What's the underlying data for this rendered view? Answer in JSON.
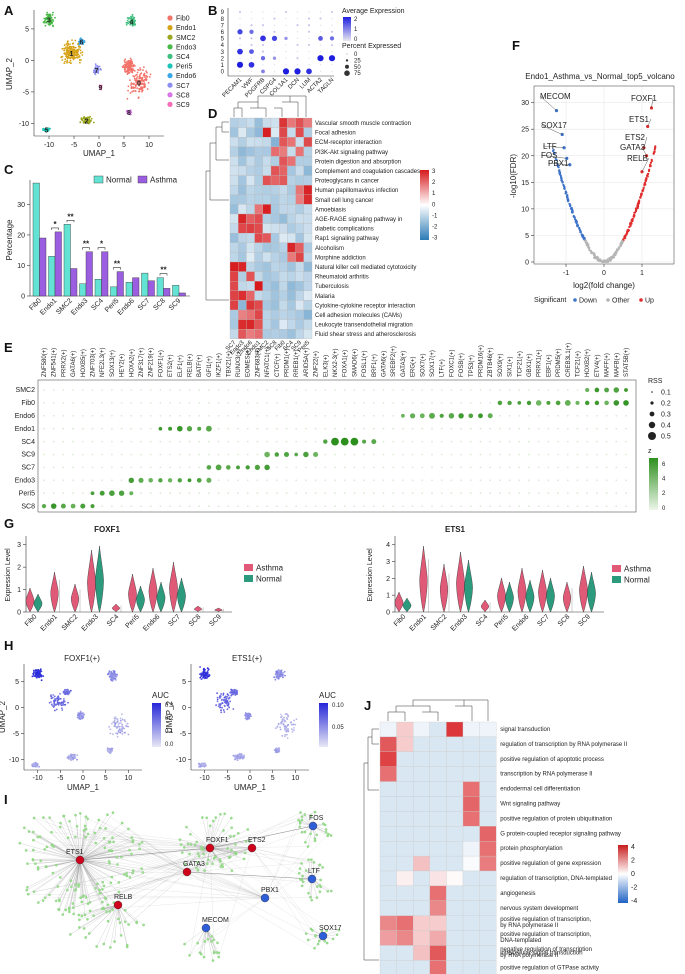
{
  "panels": {
    "A": {
      "label": "A",
      "xlabel": "UMAP_1",
      "ylabel": "UMAP_2",
      "xticks": [
        "-10",
        "-5",
        "0",
        "5",
        "10"
      ],
      "yticks": [
        "5",
        "0",
        "-5",
        "-10"
      ],
      "clusters": [
        {
          "id": "0",
          "name": "Fib0",
          "color": "#f2736a"
        },
        {
          "id": "1",
          "name": "Endo1",
          "color": "#d6a317"
        },
        {
          "id": "2",
          "name": "SMC2",
          "color": "#9aa61c"
        },
        {
          "id": "3",
          "name": "Endo3",
          "color": "#48b946"
        },
        {
          "id": "4",
          "name": "SC4",
          "color": "#3fbf7f"
        },
        {
          "id": "5",
          "name": "Peri5",
          "color": "#1ec4b6"
        },
        {
          "id": "6",
          "name": "Endo6",
          "color": "#3aa8e8"
        },
        {
          "id": "7",
          "name": "SC7",
          "color": "#8d8ff0"
        },
        {
          "id": "8",
          "name": "SC8",
          "color": "#d975e8"
        },
        {
          "id": "9",
          "name": "SC9",
          "color": "#f56cb8"
        }
      ]
    },
    "B": {
      "label": "B",
      "genes": [
        "PECAM1",
        "VWF",
        "PDGFRB",
        "CSPG4",
        "COL1A1",
        "DCN",
        "LUM",
        "ACTA2",
        "TAGLN"
      ],
      "rows": [
        "9",
        "8",
        "7",
        "6",
        "5",
        "4",
        "3",
        "2",
        "1",
        "0"
      ],
      "legend_expr_title": "Average Expression",
      "legend_expr_ticks": [
        "2",
        "1",
        "0"
      ],
      "legend_pct_title": "Percent Expressed",
      "legend_pct_ticks": [
        "0",
        "25",
        "50",
        "75"
      ]
    },
    "C": {
      "label": "C",
      "ylabel": "Percentage",
      "yticks": [
        "0",
        "10",
        "20",
        "30"
      ],
      "legend": [
        "Normal",
        "Asthma"
      ],
      "series_colors": [
        "#63e3d3",
        "#9b5ee0"
      ],
      "categories": [
        "Fib0",
        "Endo1",
        "SMC2",
        "Endo3",
        "SC4",
        "Peri5",
        "Endo6",
        "SC7",
        "SC8",
        "SC9"
      ],
      "normal": [
        37,
        13,
        23.5,
        4,
        5.5,
        3,
        4.5,
        7.5,
        6,
        3.5
      ],
      "asthma": [
        19,
        21,
        9,
        14.5,
        14.5,
        8,
        6,
        5,
        2.5,
        1
      ],
      "signif": [
        {
          "i": 1,
          "label": "*"
        },
        {
          "i": 2,
          "label": "**"
        },
        {
          "i": 3,
          "label": "**"
        },
        {
          "i": 4,
          "label": "*"
        },
        {
          "i": 5,
          "label": "**"
        },
        {
          "i": 8,
          "label": "**"
        }
      ]
    },
    "D": {
      "label": "D",
      "pathways": [
        "Vascular smooth muscle contraction",
        "Focal adhesion",
        "ECM-receptor interaction",
        "PI3K-Akt signaling pathway",
        "Protein digestion and absorption",
        "Complement and coagulation cascades",
        "Proteoglycans in cancer",
        "Human papillomavirus infection",
        "Small cell lung cancer",
        "Amoebiasis",
        "AGE-RAGE signaling pathway in",
        "diabetic complications",
        "Rap1 signaling pathway",
        "Alcoholism",
        "Morphine addiction",
        "Natural killer cell mediated cytotoxicity",
        "Rheumatoid arthritis",
        "Tuberculosis",
        "Malaria",
        "Cytokine-cytokine receptor interaction",
        "Cell adhesion molecules (CAMs)",
        "Leukocyte transendothelial migration",
        "Fluid shear stress and atherosclerosis"
      ],
      "cols": [
        "SC7",
        "Endo3",
        "Endo6",
        "Endo1",
        "SMC2",
        "SC8",
        "Fib0",
        "SC4",
        "SC9",
        "Peri5"
      ],
      "legend_ticks": [
        "3",
        "2",
        "1",
        "0",
        "-1",
        "-2",
        "-3"
      ]
    },
    "E": {
      "label": "E",
      "tfs": [
        "ZNF580(+)",
        "ZNF541(+)",
        "PRRX2(+)",
        "GATA6(+)",
        "HOXB5(+)",
        "ZNF703(+)",
        "NFE2L3(+)",
        "SOX13(+)",
        "HEY2(+)",
        "HOXA2(+)",
        "ZNF317(+)",
        "ZNF219(+)",
        "FOXF1(+)",
        "ETS2(+)",
        "ELF1(+)",
        "RELB(+)",
        "BATF(+)",
        "GFI1(+)",
        "IKZF1(+)",
        "TBX21(+)",
        "RUNX3(+)",
        "EOMES(+)",
        "ZNF683(+)",
        "NFATC1(+)",
        "CTCF(+)",
        "PRDM1(+)",
        "RREB1(+)",
        "ARID5A(+)",
        "ZNF22(+)",
        "ELK3(+)",
        "NKX2-3(+)",
        "FOXA1(+)",
        "SMAD6(+)",
        "FOSL1(+)",
        "BRF1(+)",
        "GATA6(+)",
        "SREBF2(+)",
        "GATA3(+)",
        "ERG(+)",
        "SOX7(+)",
        "SOX17(+)",
        "LTF(+)",
        "FOXC1(+)",
        "FOSB(+)",
        "TP53(+)",
        "PRDM16(+)",
        "ZBTB46(+)",
        "SOX9(+)",
        "SIX1(+)",
        "TCF21(+)",
        "GBX1(+)",
        "PRRX1(+)",
        "EBF1(+)",
        "PRDM5(+)",
        "CREB3L1(+)",
        "TCF21(+)",
        "HOXB2(+)",
        "ETV4(+)",
        "MAFF(+)",
        "MAFB(+)",
        "STAT5B(+)"
      ],
      "rows": [
        "SMC2",
        "Fib0",
        "Endo6",
        "Endo1",
        "SC4",
        "SC9",
        "SC7",
        "Endo3",
        "Peri5",
        "SC8"
      ],
      "legend_rss_title": "RSS",
      "legend_rss_ticks": [
        "0.1",
        "0.2",
        "0.3",
        "0.4",
        "0.5"
      ],
      "legend_z_title": "z",
      "legend_z_ticks": [
        "6",
        "4",
        "2",
        "0"
      ]
    },
    "G": {
      "label": "G",
      "gene1": "FOXF1",
      "gene2": "ETS1",
      "ylabel": "Expression Level",
      "yticks1": [
        "0",
        "1",
        "2",
        "3"
      ],
      "yticks2": [
        "0",
        "1",
        "2",
        "3",
        "4"
      ],
      "categories": [
        "Fib0",
        "Endo1",
        "SMC2",
        "Endo3",
        "SC4",
        "Peri5",
        "Endo6",
        "SC7",
        "SC8",
        "SC9"
      ],
      "legend": [
        "Asthma",
        "Normal"
      ],
      "colors": [
        "#e05a78",
        "#2c9a7c"
      ]
    },
    "H": {
      "label": "H",
      "title1": "FOXF1(+)",
      "title2": "ETS1(+)",
      "xlabel": "UMAP_1",
      "ylabel": "UMAP_2",
      "xticks": [
        "-10",
        "-5",
        "0",
        "5",
        "10"
      ],
      "yticks": [
        "5",
        "0",
        "-5",
        "-10"
      ],
      "auc_title": "AUC",
      "auc_ticks1": [
        "0.3",
        "0.2",
        "0.1",
        "0.0"
      ],
      "auc_ticks2": [
        "0.10",
        "0.05"
      ]
    },
    "I": {
      "label": "I",
      "hubs": [
        {
          "name": "ETS1",
          "color": "#d0021b"
        },
        {
          "name": "FOXF1",
          "color": "#d0021b"
        },
        {
          "name": "ETS2",
          "color": "#d0021b"
        },
        {
          "name": "GATA3",
          "color": "#d0021b"
        },
        {
          "name": "RELB",
          "color": "#d0021b"
        },
        {
          "name": "FOS",
          "color": "#2f5fd8"
        },
        {
          "name": "PBX1",
          "color": "#2f5fd8"
        },
        {
          "name": "LTF",
          "color": "#2f5fd8"
        },
        {
          "name": "MECOM",
          "color": "#2f5fd8"
        },
        {
          "name": "SOX17",
          "color": "#2f5fd8"
        }
      ]
    },
    "F": {
      "label": "F",
      "title": "Endo1_Asthma_vs_Normal_top5_volcano",
      "xlabel": "log2(fold change)",
      "ylabel": "-log10(FDR)",
      "xticks": [
        "-1",
        "0",
        "1"
      ],
      "yticks": [
        "0",
        "5",
        "10",
        "15",
        "20",
        "25",
        "30"
      ],
      "labels": [
        "MECOM",
        "SOX17",
        "LTF",
        "FOS",
        "PBX1",
        "FOXF1",
        "ETS1",
        "ETS2",
        "GATA3",
        "RELB"
      ],
      "legend_title": "Significant",
      "legend": [
        "Down",
        "Other",
        "Up"
      ],
      "colors": [
        "#3d73c9",
        "#b5b5b5",
        "#e02d2d"
      ]
    },
    "J": {
      "label": "J",
      "terms": [
        "signal transduction",
        "regulation of transcription by RNA polymerase II",
        "positive regulation of apoptotic process",
        "transcription by RNA polymerase II",
        "endodermal cell differentiation",
        "Wnt signaling pathway",
        "positive regulation of protein ubiquitination",
        "G protein-coupled receptor signaling pathway",
        "protein phosphorylation",
        "positive regulation of gene expression",
        "regulation of transcription, DNA-templated",
        "angiogenesis",
        "nervous system development",
        "positive regulation of transcription,",
        "by RNA polymerase II",
        "positive regulation of transcription,",
        "DNA-templated",
        "negative regulation of transcription",
        "by RNA polymerase II",
        "intracellular signal transduction",
        "positive regulation of GTPase activity"
      ],
      "cols": [
        "FOS_target_gene",
        "GATA3_target_gene",
        "ETS1_target_gene",
        "FOXF1_target_gene",
        "ETS2_target_gene",
        "LTF_target_gene",
        "SOX17_target_gene"
      ],
      "legend_ticks": [
        "4",
        "2",
        "0",
        "-2",
        "-4"
      ]
    }
  }
}
